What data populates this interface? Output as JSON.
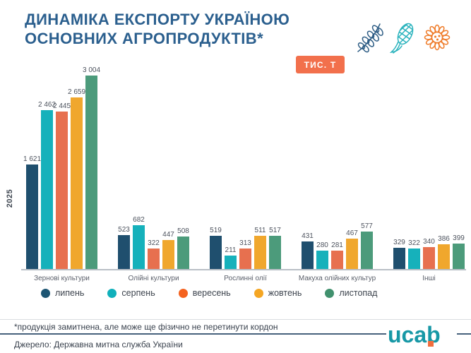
{
  "header": {
    "title_line1": "ДИНАМІКА ЕКСПОРТУ УКРАЇНОЮ",
    "title_line2": "ОСНОВНИХ АГРОПРОДУКТІВ*",
    "unit_badge": "ТИС. Т",
    "icons": [
      "wheat-icon",
      "corn-icon",
      "sunflower-icon"
    ]
  },
  "chart_data": {
    "type": "bar",
    "title": "Динаміка експорту Україною основних агропродуктів (тис. т)",
    "unit": "тис. т",
    "year_label": "2025",
    "categories": [
      "Зернові культури",
      "Олійні культури",
      "Рослинні олії",
      "Макуха олійних культур",
      "Інші"
    ],
    "series": [
      {
        "name": "липень",
        "color": "#1f4f6e",
        "dot_color": "#1d5573",
        "values": [
          1621,
          523,
          519,
          431,
          329
        ]
      },
      {
        "name": "серпень",
        "color": "#16b1bb",
        "dot_color": "#10b0bb",
        "values": [
          2462,
          682,
          211,
          280,
          322
        ]
      },
      {
        "name": "вересень",
        "color": "#e7704f",
        "dot_color": "#f4621f",
        "values": [
          2445,
          322,
          313,
          281,
          340
        ]
      },
      {
        "name": "жовтень",
        "color": "#f0a72d",
        "dot_color": "#f5a623",
        "values": [
          2659,
          447,
          511,
          467,
          386
        ]
      },
      {
        "name": "листопад",
        "color": "#4c9b7b",
        "dot_color": "#41916e",
        "values": [
          3004,
          508,
          517,
          577,
          399
        ]
      }
    ],
    "ylim": [
      0,
      3004
    ],
    "grid": false,
    "legend_position": "bottom",
    "value_labels": true,
    "value_label_format": "space thousands separator, e.g. 3 004"
  },
  "footer": {
    "footnote": "*продукція замитнена, але може ще фізично не перетинути кордон",
    "source": "Джерело: Державна митна служба України",
    "logo_text": "ucab"
  },
  "colors": {
    "title": "#2b5f8e",
    "badge": "#f2704c",
    "axis_line": "#b9bfc6",
    "footer_rule": "#47617c",
    "logo_teal": "#1798a6",
    "logo_orange": "#f26d3d",
    "wheat_icon": "#2e5d85",
    "corn_icon": "#2ab3bd",
    "sunflower_icon": "#ef7d2c"
  }
}
